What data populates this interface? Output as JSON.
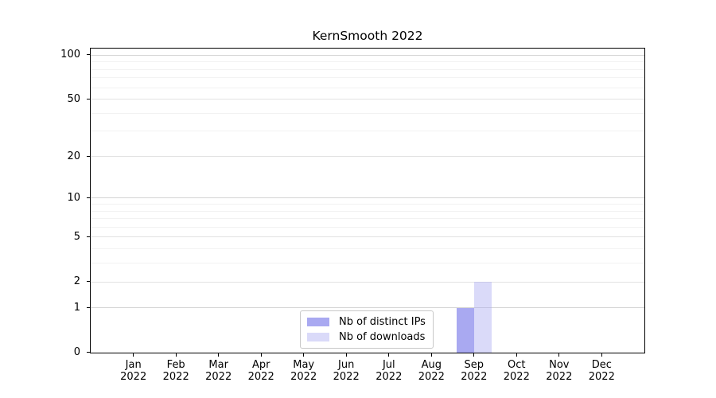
{
  "chart_data": {
    "type": "bar",
    "title": "KernSmooth 2022",
    "x_categories": [
      "Jan",
      "Feb",
      "Mar",
      "Apr",
      "May",
      "Jun",
      "Jul",
      "Aug",
      "Sep",
      "Oct",
      "Nov",
      "Dec"
    ],
    "x_year_label": "2022",
    "series": [
      {
        "name": "Nb of distinct IPs",
        "color": "#a9a9f1",
        "fill_alpha": 1,
        "values": [
          0,
          0,
          0,
          0,
          0,
          0,
          0,
          0,
          1,
          0,
          0,
          0
        ]
      },
      {
        "name": "Nb of downloads",
        "color": "#acacf2",
        "fill_alpha": 0.45,
        "values": [
          0,
          0,
          0,
          0,
          0,
          0,
          0,
          0,
          2,
          0,
          0,
          0
        ]
      }
    ],
    "y_scale": "log1p",
    "y_ticks": [
      0,
      1,
      2,
      5,
      10,
      20,
      50,
      100
    ],
    "y_major_gridlines": [
      1,
      10,
      100
    ],
    "y_mid_gridlines": [
      2,
      5,
      20,
      50
    ],
    "y_minor_gridlines": [
      3,
      4,
      6,
      7,
      8,
      9,
      30,
      40,
      60,
      70,
      80,
      90
    ],
    "ylim": [
      0,
      112
    ],
    "xlabel": "",
    "ylabel": "",
    "grid": "horizontal",
    "legend_position": "lower center"
  }
}
